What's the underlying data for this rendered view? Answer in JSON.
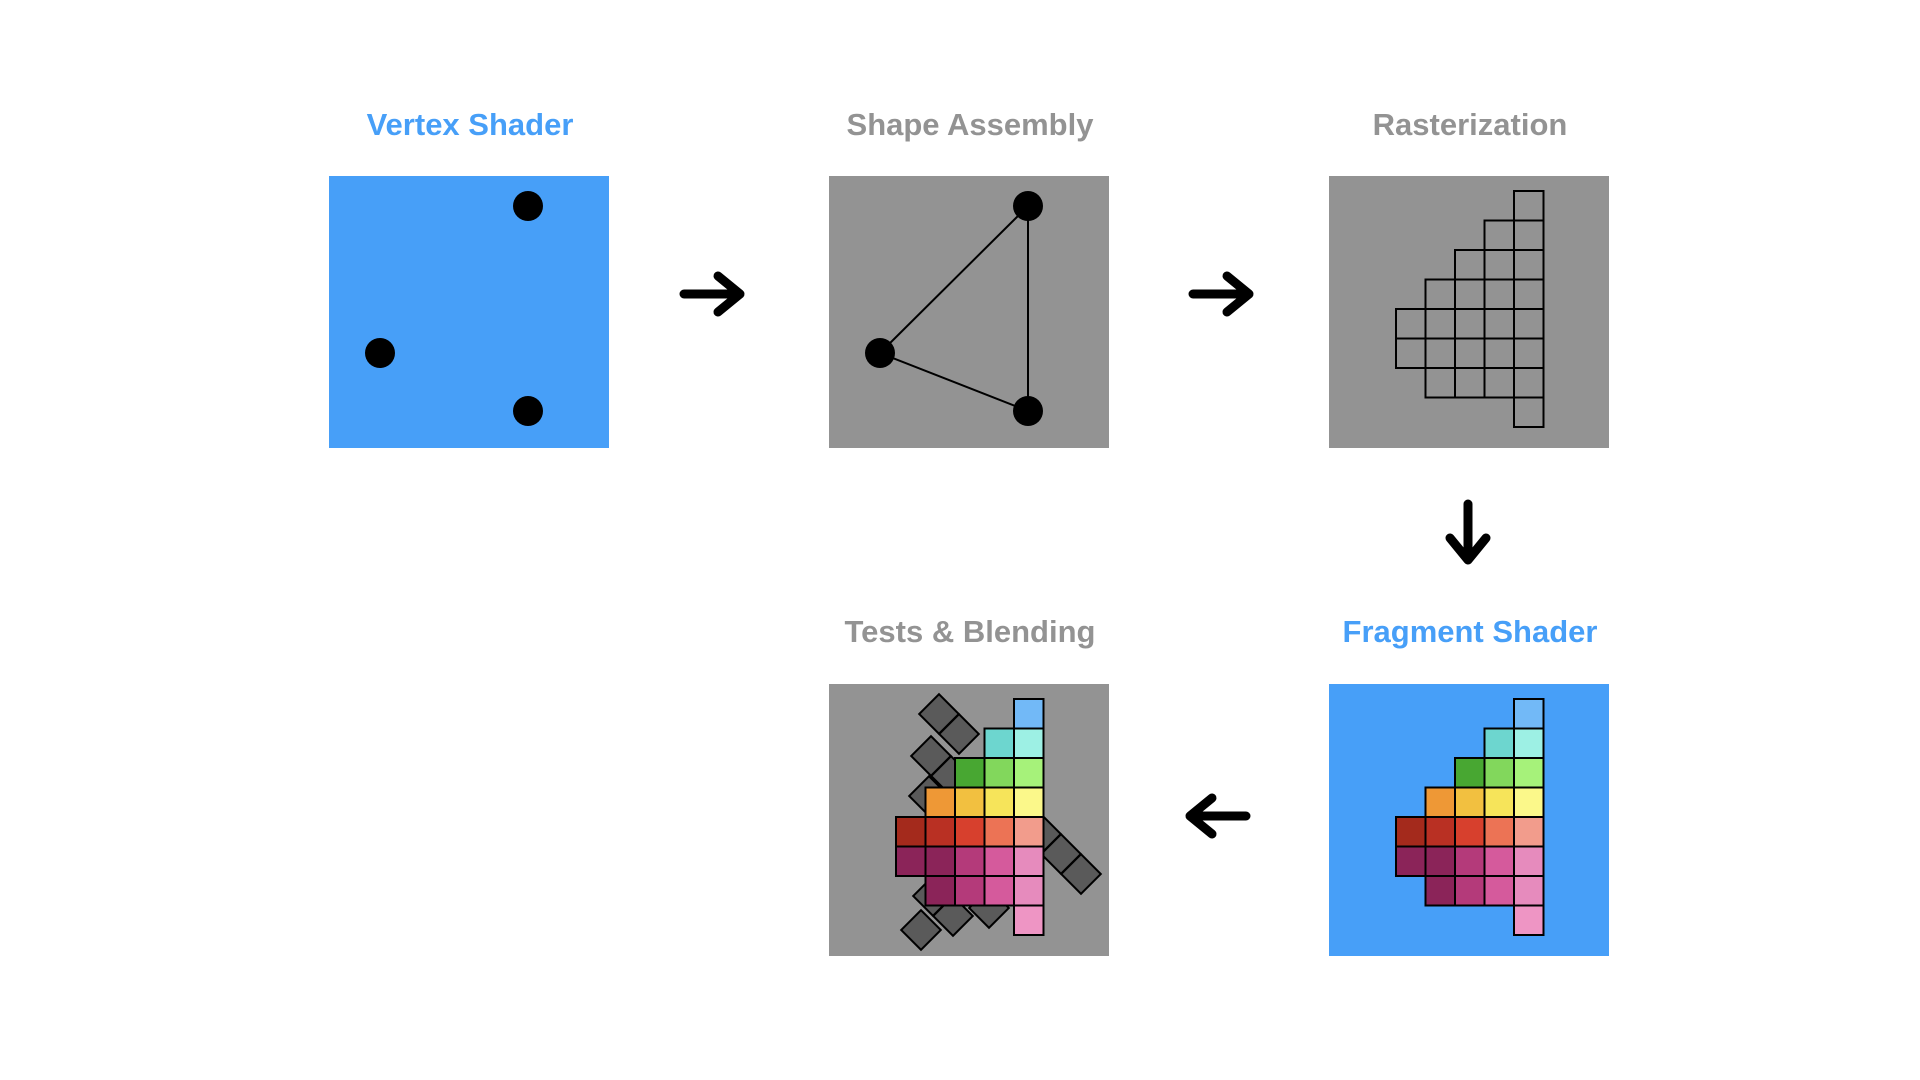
{
  "stages": {
    "vertex_shader": {
      "title": "Vertex Shader"
    },
    "shape_assembly": {
      "title": "Shape Assembly"
    },
    "rasterization": {
      "title": "Rasterization"
    },
    "fragment_shader": {
      "title": "Fragment Shader"
    },
    "tests_blending": {
      "title": "Tests & Blending"
    }
  },
  "colors": {
    "shader_stage": "#479ff8",
    "fixed_stage": "#939393",
    "title_gray": "#939393",
    "occluder": "#5a5a5a",
    "fragment_rows": [
      [
        "#72b9f7"
      ],
      [
        "#6dd6cf",
        "#9df0e4"
      ],
      [
        "#48a732",
        "#82d75c",
        "#a6f27a"
      ],
      [
        "#ee9836",
        "#f2c040",
        "#f6e45a",
        "#fbf88a"
      ],
      [
        "#a42a1c",
        "#b93023",
        "#d7402d",
        "#ec7355",
        "#f29c8c"
      ],
      [
        "#8b2459",
        "#8b2459",
        "#b43a7a",
        "#d55a9c",
        "#e68bbd"
      ],
      [
        "#8b2459",
        "#b43a7a",
        "#d55a9c",
        "#e68bbd"
      ],
      [
        "#ee95c4"
      ]
    ]
  }
}
